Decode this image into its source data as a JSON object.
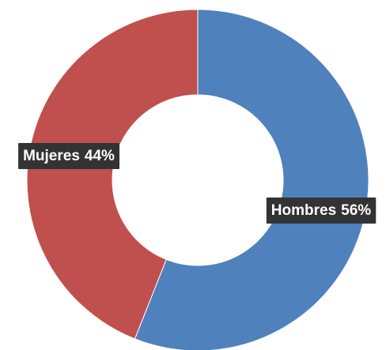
{
  "chart_data": {
    "type": "donut",
    "categories": [
      "Hombres",
      "Mujeres"
    ],
    "values": [
      56,
      44
    ],
    "value_labels": [
      "56%",
      "44%"
    ],
    "colors": [
      "#4f81bd",
      "#c0504d"
    ]
  }
}
